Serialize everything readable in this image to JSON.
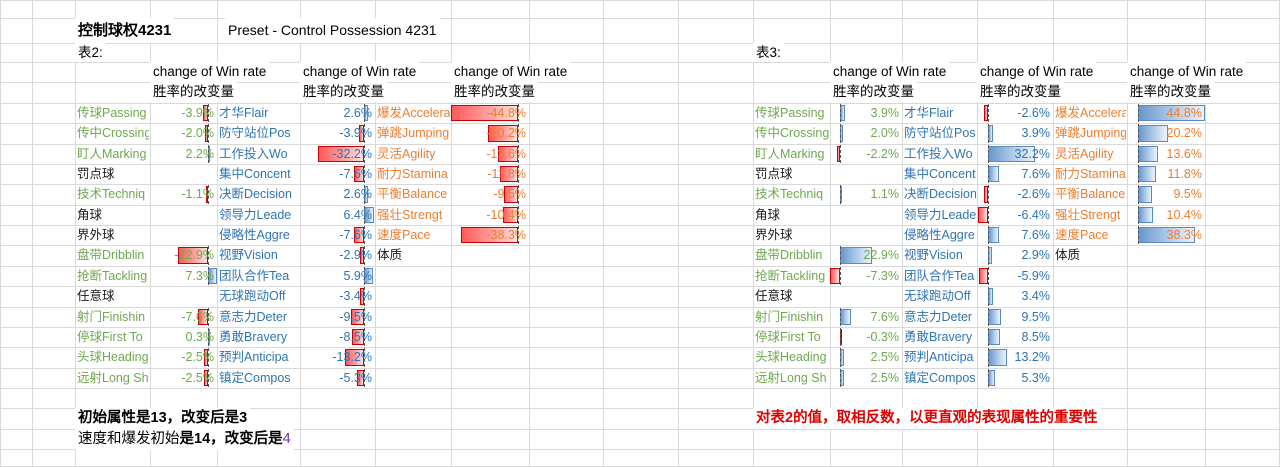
{
  "palette": {
    "green": "#6FA84F",
    "blue": "#2E74B5",
    "orange": "#ED7D31",
    "black": "#1a1a1a",
    "purple": "#7030A0",
    "red_note": "#E00000",
    "bar_blue_border": "#5A8AC6",
    "bar_red_border": "#CC0000"
  },
  "header": {
    "title_cn": "控制球权4231",
    "title_en": "Preset - Control Possession 4231"
  },
  "table2": {
    "caption": "表2:",
    "win_rate_header_en": "change of Win rate",
    "win_rate_header_cn": "胜率的改变量",
    "rows": [
      {
        "cells": [
          {
            "label": "传球Passing",
            "value": "-3.9%",
            "num": -3.9
          },
          {
            "label": "才华Flair",
            "value": "2.6%",
            "num": 2.6
          },
          {
            "label": "爆发Accelera",
            "value": "-44.8%",
            "num": -44.8
          }
        ]
      },
      {
        "cells": [
          {
            "label": "传中Crossing",
            "value": "-2.0%",
            "num": -2.0
          },
          {
            "label": "防守站位Pos",
            "value": "-3.9%",
            "num": -3.9
          },
          {
            "label": "弹跳Jumping",
            "value": "-20.2%",
            "num": -20.2
          }
        ]
      },
      {
        "cells": [
          {
            "label": "盯人Marking",
            "value": "2.2%",
            "num": 2.2
          },
          {
            "label": "工作投入Wo",
            "value": "-32.2%",
            "num": -32.2
          },
          {
            "label": "灵活Agility",
            "value": "-13.6%",
            "num": -13.6
          }
        ]
      },
      {
        "cells": [
          {
            "label": "罚点球",
            "black": true
          },
          {
            "label": "集中Concent",
            "value": "-7.6%",
            "num": -7.6
          },
          {
            "label": "耐力Stamina",
            "value": "-11.8%",
            "num": -11.8
          }
        ]
      },
      {
        "cells": [
          {
            "label": "技术Techniq",
            "value": "-1.1%",
            "num": -1.1
          },
          {
            "label": "决断Decision",
            "value": "2.6%",
            "num": 2.6
          },
          {
            "label": "平衡Balance",
            "value": "-9.5%",
            "num": -9.5
          }
        ]
      },
      {
        "cells": [
          {
            "label": "角球",
            "black": true
          },
          {
            "label": "领导力Leade",
            "value": "6.4%",
            "num": 6.4
          },
          {
            "label": "强壮Strengt",
            "value": "-10.4%",
            "num": -10.4
          }
        ]
      },
      {
        "cells": [
          {
            "label": "界外球",
            "black": true
          },
          {
            "label": "侵略性Aggre",
            "value": "-7.6%",
            "num": -7.6
          },
          {
            "label": "速度Pace",
            "value": "-38.3%",
            "num": -38.3
          }
        ]
      },
      {
        "cells": [
          {
            "label": "盘带Dribblin",
            "value": "-22.9%",
            "num": -22.9
          },
          {
            "label": "视野Vision",
            "value": "-2.9%",
            "num": -2.9
          },
          {
            "label": "体质",
            "black": true
          }
        ]
      },
      {
        "cells": [
          {
            "label": "抢断Tackling",
            "value": "7.3%",
            "num": 7.3
          },
          {
            "label": "团队合作Tea",
            "value": "5.9%",
            "num": 5.9
          },
          null
        ]
      },
      {
        "cells": [
          {
            "label": "任意球",
            "black": true
          },
          {
            "label": "无球跑动Off",
            "value": "-3.4%",
            "num": -3.4
          },
          null
        ]
      },
      {
        "cells": [
          {
            "label": "射门Finishin",
            "value": "-7.6%",
            "num": -7.6
          },
          {
            "label": "意志力Deter",
            "value": "-9.5%",
            "num": -9.5
          },
          null
        ]
      },
      {
        "cells": [
          {
            "label": "停球First To",
            "value": "0.3%",
            "num": 0.3
          },
          {
            "label": "勇敢Bravery",
            "value": "-8.5%",
            "num": -8.5
          },
          null
        ]
      },
      {
        "cells": [
          {
            "label": "头球Heading",
            "value": "-2.5%",
            "num": -2.5
          },
          {
            "label": "预判Anticipa",
            "value": "-13.2%",
            "num": -13.2
          },
          null
        ]
      },
      {
        "cells": [
          {
            "label": "远射Long Sh",
            "value": "-2.5%",
            "num": -2.5
          },
          {
            "label": "镇定Compos",
            "value": "-5.3%",
            "num": -5.3
          },
          null
        ]
      }
    ]
  },
  "table3": {
    "caption": "表3:",
    "win_rate_header_en": "change of Win rate",
    "win_rate_header_cn": "胜率的改变量",
    "rows": [
      {
        "cells": [
          {
            "label": "传球Passing",
            "value": "3.9%",
            "num": 3.9
          },
          {
            "label": "才华Flair",
            "value": "-2.6%",
            "num": -2.6
          },
          {
            "label": "爆发Accelera",
            "value": "44.8%",
            "num": 44.8
          }
        ]
      },
      {
        "cells": [
          {
            "label": "传中Crossing",
            "value": "2.0%",
            "num": 2.0
          },
          {
            "label": "防守站位Pos",
            "value": "3.9%",
            "num": 3.9
          },
          {
            "label": "弹跳Jumping",
            "value": "20.2%",
            "num": 20.2
          }
        ]
      },
      {
        "cells": [
          {
            "label": "盯人Marking",
            "value": "-2.2%",
            "num": -2.2
          },
          {
            "label": "工作投入Wo",
            "value": "32.2%",
            "num": 32.2
          },
          {
            "label": "灵活Agility",
            "value": "13.6%",
            "num": 13.6
          }
        ]
      },
      {
        "cells": [
          {
            "label": "罚点球",
            "black": true
          },
          {
            "label": "集中Concent",
            "value": "7.6%",
            "num": 7.6
          },
          {
            "label": "耐力Stamina",
            "value": "11.8%",
            "num": 11.8
          }
        ]
      },
      {
        "cells": [
          {
            "label": "技术Techniq",
            "value": "1.1%",
            "num": 1.1
          },
          {
            "label": "决断Decision",
            "value": "-2.6%",
            "num": -2.6
          },
          {
            "label": "平衡Balance",
            "value": "9.5%",
            "num": 9.5
          }
        ]
      },
      {
        "cells": [
          {
            "label": "角球",
            "black": true
          },
          {
            "label": "领导力Leade",
            "value": "-6.4%",
            "num": -6.4
          },
          {
            "label": "强壮Strengt",
            "value": "10.4%",
            "num": 10.4
          }
        ]
      },
      {
        "cells": [
          {
            "label": "界外球",
            "black": true
          },
          {
            "label": "侵略性Aggre",
            "value": "7.6%",
            "num": 7.6
          },
          {
            "label": "速度Pace",
            "value": "38.3%",
            "num": 38.3
          }
        ]
      },
      {
        "cells": [
          {
            "label": "盘带Dribblin",
            "value": "22.9%",
            "num": 22.9
          },
          {
            "label": "视野Vision",
            "value": "2.9%",
            "num": 2.9
          },
          {
            "label": "体质",
            "black": true
          }
        ]
      },
      {
        "cells": [
          {
            "label": "抢断Tackling",
            "value": "-7.3%",
            "num": -7.3
          },
          {
            "label": "团队合作Tea",
            "value": "-5.9%",
            "num": -5.9
          },
          null
        ]
      },
      {
        "cells": [
          {
            "label": "任意球",
            "black": true
          },
          {
            "label": "无球跑动Off",
            "value": "3.4%",
            "num": 3.4
          },
          null
        ]
      },
      {
        "cells": [
          {
            "label": "射门Finishin",
            "value": "7.6%",
            "num": 7.6
          },
          {
            "label": "意志力Deter",
            "value": "9.5%",
            "num": 9.5
          },
          null
        ]
      },
      {
        "cells": [
          {
            "label": "停球First To",
            "value": "-0.3%",
            "num": -0.3
          },
          {
            "label": "勇敢Bravery",
            "value": "8.5%",
            "num": 8.5
          },
          null
        ]
      },
      {
        "cells": [
          {
            "label": "头球Heading",
            "value": "2.5%",
            "num": 2.5
          },
          {
            "label": "预判Anticipa",
            "value": "13.2%",
            "num": 13.2
          },
          null
        ]
      },
      {
        "cells": [
          {
            "label": "远射Long Sh",
            "value": "2.5%",
            "num": 2.5
          },
          {
            "label": "镇定Compos",
            "value": "5.3%",
            "num": 5.3
          },
          null
        ]
      }
    ]
  },
  "notes": {
    "note1": "初始属性是13，改变后是3",
    "note2_part1": "速度和爆发初始",
    "note2_part2": "是14，改变后是",
    "note2_part3": "4",
    "note3": "对表2的值，取相反数，以更直观的表现属性的重要性"
  }
}
